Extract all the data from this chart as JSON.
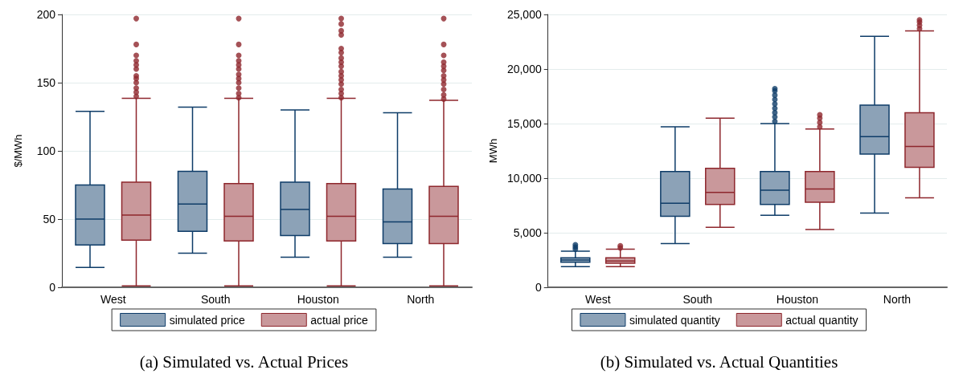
{
  "chart_data": [
    {
      "type": "box",
      "title": "(a) Simulated vs. Actual Prices",
      "ylabel": "$/MWh",
      "categories": [
        "West",
        "South",
        "Houston",
        "North"
      ],
      "ylim": [
        0,
        200
      ],
      "yticks": [
        0,
        50,
        100,
        150,
        200
      ],
      "grid": "y",
      "legend": "bottom",
      "series": [
        {
          "name": "simulated price",
          "color": "#8ca2b7",
          "boxes": [
            {
              "low": 14.5,
              "q1": 31,
              "median": 50,
              "q3": 75,
              "high": 129
            },
            {
              "low": 25,
              "q1": 41,
              "median": 61,
              "q3": 85,
              "high": 132
            },
            {
              "low": 22,
              "q1": 38,
              "median": 57,
              "q3": 77,
              "high": 130
            },
            {
              "low": 22,
              "q1": 32,
              "median": 48,
              "q3": 72,
              "high": 128
            }
          ]
        },
        {
          "name": "actual price",
          "color": "#c9989b",
          "boxes": [
            {
              "low": 1,
              "q1": 34.5,
              "median": 53,
              "q3": 77,
              "high": 138.5,
              "outliers": [
                140,
                143,
                146,
                150,
                153,
                155,
                160,
                163,
                166,
                170,
                178,
                197
              ]
            },
            {
              "low": 1,
              "q1": 34,
              "median": 52,
              "q3": 76,
              "high": 138.5,
              "outliers": [
                139,
                142,
                146,
                150,
                153,
                156,
                160,
                163,
                166,
                170,
                178,
                197
              ]
            },
            {
              "low": 1,
              "q1": 34,
              "median": 52,
              "q3": 76,
              "high": 138.5,
              "outliers": [
                139,
                142,
                145,
                149,
                152,
                155,
                158,
                162,
                165,
                168,
                172,
                175,
                185,
                188,
                193,
                197
              ]
            },
            {
              "low": 1,
              "q1": 32,
              "median": 52,
              "q3": 74,
              "high": 137,
              "outliers": [
                138,
                141,
                145,
                149,
                152,
                155,
                159,
                162,
                165,
                170,
                178,
                197
              ]
            }
          ]
        }
      ]
    },
    {
      "type": "box",
      "title": "(b) Simulated vs. Actual Quantities",
      "ylabel": "MWh",
      "categories": [
        "West",
        "South",
        "Houston",
        "North"
      ],
      "ylim": [
        0,
        25000
      ],
      "yticks": [
        0,
        {
          "value": 5000,
          "label": "5,000"
        },
        {
          "value": 10000,
          "label": "10,000"
        },
        {
          "value": 15000,
          "label": "15,000"
        },
        {
          "value": 20000,
          "label": "20,000"
        },
        {
          "value": 25000,
          "label": "25,000"
        }
      ],
      "grid": "y",
      "legend": "bottom",
      "series": [
        {
          "name": "simulated quantity",
          "color": "#8ca2b7",
          "boxes": [
            {
              "low": 1900,
              "q1": 2300,
              "median": 2500,
              "q3": 2700,
              "high": 3300,
              "outliers": [
                3500,
                3700,
                3900
              ]
            },
            {
              "low": 4000,
              "q1": 6500,
              "median": 7700,
              "q3": 10600,
              "high": 14700
            },
            {
              "low": 6600,
              "q1": 7600,
              "median": 8900,
              "q3": 10600,
              "high": 15000,
              "outliers": [
                15200,
                15600,
                16000,
                16400,
                16800,
                17200,
                17600,
                18000,
                18200
              ]
            },
            {
              "low": 6800,
              "q1": 12200,
              "median": 13800,
              "q3": 16700,
              "high": 23000
            }
          ]
        },
        {
          "name": "actual quantity",
          "color": "#c9989b",
          "boxes": [
            {
              "low": 1900,
              "q1": 2200,
              "median": 2400,
              "q3": 2700,
              "high": 3500,
              "outliers": [
                3600,
                3800
              ]
            },
            {
              "low": 5500,
              "q1": 7600,
              "median": 8700,
              "q3": 10900,
              "high": 15500
            },
            {
              "low": 5300,
              "q1": 7800,
              "median": 9000,
              "q3": 10600,
              "high": 14500,
              "outliers": [
                14700,
                15100,
                15500,
                15800
              ]
            },
            {
              "low": 8200,
              "q1": 11000,
              "median": 12900,
              "q3": 16000,
              "high": 23500,
              "outliers": [
                23700,
                24000,
                24300,
                24500
              ]
            }
          ]
        }
      ]
    }
  ]
}
